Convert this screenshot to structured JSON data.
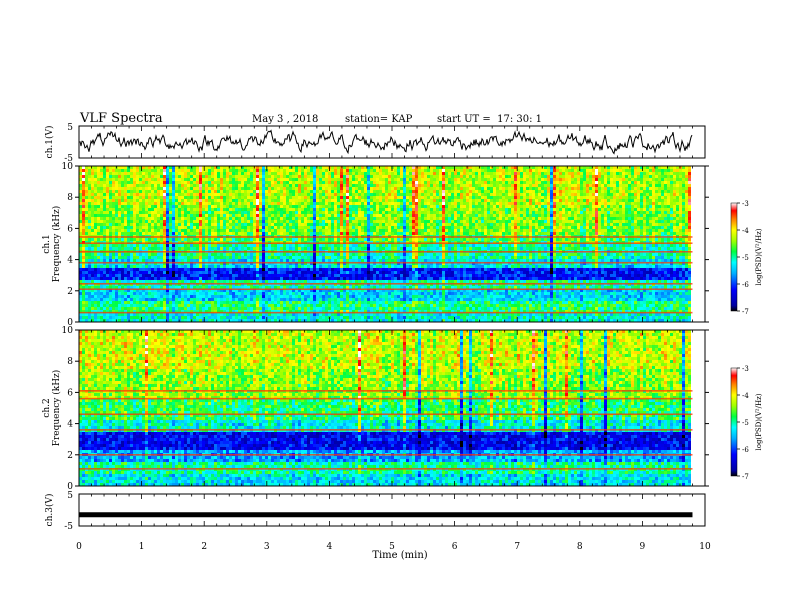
{
  "header": {
    "title": "VLF Spectra",
    "date": "May 3 , 2018",
    "station": "station= KAP",
    "start": "start UT =  17: 30: 1"
  },
  "chart_data": [
    {
      "type": "line",
      "panel": "ch.1 waveform",
      "ylabel": "ch.1(V)",
      "ylim": [
        -5,
        5
      ],
      "yticks": [
        -5,
        5
      ],
      "xlim": [
        0,
        10
      ],
      "description_series": [
        {
          "values": "noisy waveform oscillating roughly between -3 V and +3 V over 0–9.8 min"
        }
      ]
    },
    {
      "type": "heatmap",
      "panel": "ch.1 spectrogram",
      "ylabel": "ch.1 Frequency (kHz)",
      "ylim": [
        0,
        10
      ],
      "yticks": [
        0,
        2,
        4,
        6,
        8,
        10
      ],
      "xlim": [
        0,
        10
      ],
      "data_end_min": 9.8,
      "colorbar": {
        "label": "log(PSD)(V²/Hz)",
        "ticks": [
          -3,
          -4,
          -5,
          -6,
          -7
        ],
        "range": [
          -7,
          -3
        ]
      },
      "bands_khz": [
        {
          "f": [
            0.0,
            0.5
          ],
          "level": -5.2
        },
        {
          "f": [
            0.5,
            1.3
          ],
          "level": -4.9
        },
        {
          "f": [
            1.3,
            2.2
          ],
          "level": -5.4
        },
        {
          "f": [
            2.2,
            2.6
          ],
          "level": -5.0
        },
        {
          "f": [
            2.6,
            3.4
          ],
          "level": -6.2
        },
        {
          "f": [
            3.4,
            4.1
          ],
          "level": -5.3
        },
        {
          "f": [
            4.1,
            5.0
          ],
          "level": -5.0
        },
        {
          "f": [
            5.0,
            5.6
          ],
          "level": -4.7
        },
        {
          "f": [
            5.6,
            7.5
          ],
          "level": -4.5
        },
        {
          "f": [
            7.5,
            10.0
          ],
          "level": -4.3
        }
      ],
      "lines_khz": [
        0.6,
        2.1,
        2.45,
        3.8,
        4.5,
        5.05,
        5.45
      ]
    },
    {
      "type": "heatmap",
      "panel": "ch.2 spectrogram",
      "ylabel": "ch.2 Frequency (kHz)",
      "ylim": [
        0,
        10
      ],
      "yticks": [
        0,
        2,
        4,
        6,
        8,
        10
      ],
      "xlim": [
        0,
        10
      ],
      "data_end_min": 9.8,
      "colorbar": {
        "label": "log(PSD)(V²/Hz)",
        "ticks": [
          -3,
          -4,
          -5,
          -6,
          -7
        ],
        "range": [
          -7,
          -3
        ]
      },
      "bands_khz": [
        {
          "f": [
            0.0,
            0.8
          ],
          "level": -5.3
        },
        {
          "f": [
            0.8,
            1.5
          ],
          "level": -5.0
        },
        {
          "f": [
            1.5,
            2.3
          ],
          "level": -5.6
        },
        {
          "f": [
            2.3,
            3.5
          ],
          "level": -6.3
        },
        {
          "f": [
            3.5,
            4.2
          ],
          "level": -5.2
        },
        {
          "f": [
            4.2,
            5.5
          ],
          "level": -4.8
        },
        {
          "f": [
            5.5,
            7.5
          ],
          "level": -4.4
        },
        {
          "f": [
            7.5,
            10.0
          ],
          "level": -4.2
        }
      ],
      "lines_khz": [
        1.1,
        2.0,
        3.6,
        4.6,
        6.1,
        5.6
      ]
    },
    {
      "type": "line",
      "panel": "ch.3 waveform",
      "ylabel": "ch.3(V)",
      "ylim": [
        -5,
        5
      ],
      "yticks": [
        -5,
        5
      ],
      "xlim": [
        0,
        10
      ],
      "series": [
        {
          "x": [
            0,
            9.8
          ],
          "values": [
            -1.5,
            -1.5
          ]
        }
      ]
    }
  ],
  "xaxis": {
    "label": "Time (min)",
    "ticks": [
      "0",
      "1",
      "2",
      "3",
      "4",
      "5",
      "6",
      "7",
      "8",
      "9",
      "10"
    ]
  }
}
